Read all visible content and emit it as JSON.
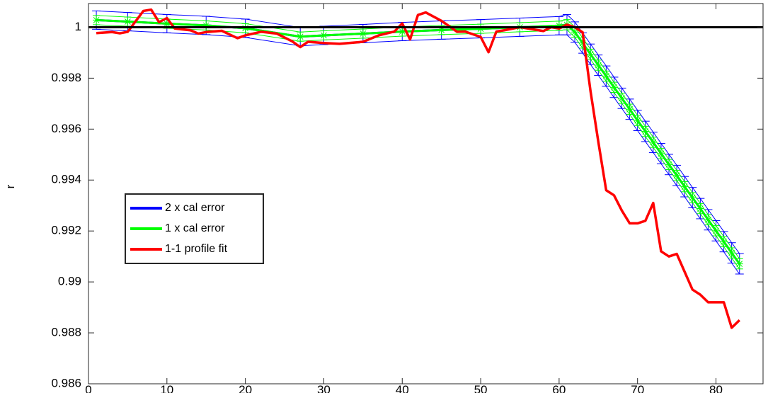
{
  "chart_data": {
    "type": "line",
    "title": "",
    "xlabel": "",
    "ylabel": "r",
    "xlim": [
      0,
      86
    ],
    "ylim": [
      0.986,
      1.00093
    ],
    "xticks": [
      0,
      10,
      20,
      30,
      40,
      50,
      60,
      70,
      80
    ],
    "yticks": [
      0.986,
      0.988,
      0.99,
      0.992,
      0.994,
      0.996,
      0.998,
      1
    ],
    "ytick_labels": [
      "0.986",
      "0.988",
      "0.99",
      "0.992",
      "0.994",
      "0.996",
      "0.998",
      "1"
    ],
    "grid": false,
    "legend_position": "middle-left",
    "reference_line": {
      "y": 1.0,
      "color": "#000000"
    },
    "series": [
      {
        "name": "2 x cal error",
        "color": "#0000ff",
        "x": [
          1,
          5,
          10,
          15,
          20,
          27,
          30,
          35,
          40,
          45,
          50,
          55,
          60,
          61,
          62,
          63,
          64,
          65,
          66,
          67,
          68,
          69,
          70,
          71,
          72,
          73,
          74,
          75,
          76,
          77,
          78,
          79,
          80,
          81,
          82,
          83
        ],
        "y": [
          1.00028,
          1.00022,
          1.00014,
          1.00007,
          0.99996,
          0.99963,
          0.99968,
          0.99975,
          0.99983,
          0.99989,
          0.99994,
          1.0,
          1.00006,
          1.0001,
          0.99981,
          0.99938,
          0.99894,
          0.99851,
          0.99808,
          0.99764,
          0.99721,
          0.99678,
          0.99634,
          0.99591,
          0.99548,
          0.99504,
          0.99461,
          0.99418,
          0.99374,
          0.99331,
          0.99288,
          0.99244,
          0.99201,
          0.99158,
          0.99114,
          0.99071
        ],
        "err": [
          0.00036,
          0.00036,
          0.00036,
          0.00036,
          0.00036,
          0.00036,
          0.00036,
          0.00036,
          0.00036,
          0.00036,
          0.00036,
          0.00036,
          0.00036,
          0.0004,
          0.0004,
          0.0004,
          0.0004,
          0.0004,
          0.0004,
          0.0004,
          0.0004,
          0.0004,
          0.0004,
          0.0004,
          0.0004,
          0.0004,
          0.0004,
          0.0004,
          0.0004,
          0.0004,
          0.0004,
          0.0004,
          0.0004,
          0.0004,
          0.0004,
          0.0004
        ]
      },
      {
        "name": "1 x cal error",
        "color": "#00ff00",
        "x": [
          1,
          5,
          10,
          15,
          20,
          27,
          30,
          35,
          40,
          45,
          50,
          55,
          60,
          61,
          62,
          63,
          64,
          65,
          66,
          67,
          68,
          69,
          70,
          71,
          72,
          73,
          74,
          75,
          76,
          77,
          78,
          79,
          80,
          81,
          82,
          83
        ],
        "y": [
          1.00028,
          1.00022,
          1.00014,
          1.00007,
          0.99996,
          0.99963,
          0.99968,
          0.99975,
          0.99983,
          0.99989,
          0.99994,
          1.0,
          1.00006,
          1.0001,
          0.99981,
          0.99938,
          0.99894,
          0.99851,
          0.99808,
          0.99764,
          0.99721,
          0.99678,
          0.99634,
          0.99591,
          0.99548,
          0.99504,
          0.99461,
          0.99418,
          0.99374,
          0.99331,
          0.99288,
          0.99244,
          0.99201,
          0.99158,
          0.99114,
          0.99071
        ],
        "err": [
          0.00018,
          0.00018,
          0.00018,
          0.00018,
          0.00018,
          0.00018,
          0.00018,
          0.00018,
          0.00018,
          0.00018,
          0.00018,
          0.00018,
          0.00018,
          0.0002,
          0.0002,
          0.0002,
          0.0002,
          0.0002,
          0.0002,
          0.0002,
          0.0002,
          0.0002,
          0.0002,
          0.0002,
          0.0002,
          0.0002,
          0.0002,
          0.0002,
          0.0002,
          0.0002,
          0.0002,
          0.0002,
          0.0002,
          0.0002,
          0.0002,
          0.0002
        ]
      },
      {
        "name": "1-1 profile fit",
        "color": "#ff0000",
        "x": [
          1,
          3,
          4,
          5,
          7,
          8,
          9,
          10,
          11,
          13,
          14,
          15,
          17,
          19,
          20,
          22,
          24,
          26,
          27,
          28,
          30,
          32,
          34,
          35,
          37,
          39,
          40,
          41,
          42,
          43,
          45,
          47,
          48,
          50,
          51,
          52,
          53,
          55,
          57,
          58,
          59,
          60,
          61,
          62,
          63,
          64,
          65,
          66,
          67,
          68,
          69,
          70,
          71,
          72,
          73,
          74,
          75,
          76,
          77,
          78,
          79,
          80,
          81,
          82,
          83
        ],
        "y": [
          0.99977,
          0.99981,
          0.99976,
          0.99982,
          1.00064,
          1.00069,
          1.0002,
          1.00036,
          0.99995,
          0.99988,
          0.99975,
          0.99981,
          0.99986,
          0.99957,
          0.99968,
          0.99982,
          0.99975,
          0.99944,
          0.99922,
          0.99943,
          0.99938,
          0.99935,
          0.9994,
          0.99943,
          0.99968,
          0.99983,
          1.00015,
          0.99952,
          1.00048,
          1.00058,
          1.00025,
          0.99982,
          0.99983,
          0.99962,
          0.99902,
          0.99983,
          0.99988,
          1.0,
          0.9999,
          0.99985,
          1.0,
          0.99995,
          1.0001,
          1.0,
          0.9998,
          0.9975,
          0.9955,
          0.9936,
          0.9934,
          0.9928,
          0.9923,
          0.9923,
          0.9924,
          0.9931,
          0.9912,
          0.991,
          0.9911,
          0.9904,
          0.9897,
          0.9895,
          0.9892,
          0.9892,
          0.9892,
          0.9882,
          0.9885
        ]
      }
    ]
  }
}
